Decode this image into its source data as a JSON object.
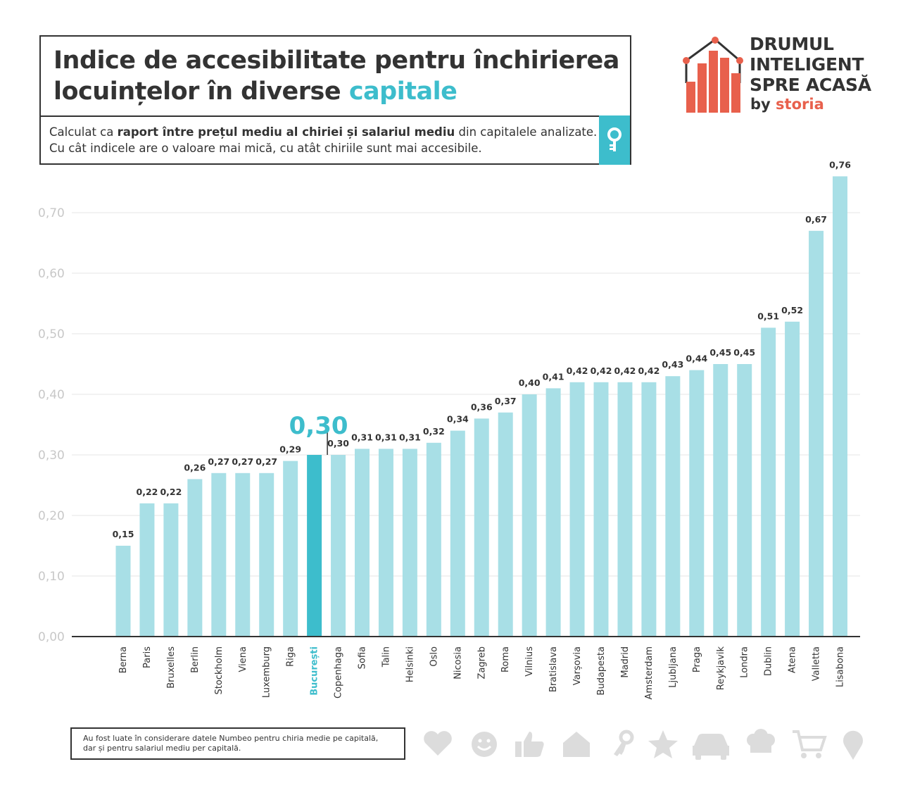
{
  "header": {
    "title_part1": "Indice de accesibilitate pentru închirierea locuințelor în diverse",
    "title_accent": "capitale",
    "subtitle_part1": "Calculat ca",
    "subtitle_bold": "raport între prețul mediu al chiriei și salariul mediu",
    "subtitle_part2": "din capitalele analizate.",
    "subtitle_line2": "Cu cât indicele are o valoare mai mică, cu atât chiriile sunt mai accesibile.",
    "key_icon": "key-icon"
  },
  "logo": {
    "line1": "DRUMUL",
    "line2": "INTELIGENT",
    "line3": "SPRE ACASĂ",
    "by": "by",
    "brand": "storia"
  },
  "chart_data": {
    "type": "bar",
    "categories": [
      "Berna",
      "Paris",
      "Bruxelles",
      "Berlin",
      "Stockholm",
      "Viena",
      "Luxemburg",
      "Riga",
      "București",
      "Copenhaga",
      "Sofia",
      "Talin",
      "Helsinki",
      "Oslo",
      "Nicosia",
      "Zagreb",
      "Roma",
      "Vilnius",
      "Bratislava",
      "Varșovia",
      "Budapesta",
      "Madrid",
      "Amsterdam",
      "Ljubljana",
      "Praga",
      "Reykjavik",
      "Londra",
      "Dublin",
      "Atena",
      "Valletta",
      "Lisabona"
    ],
    "values": [
      0.15,
      0.22,
      0.22,
      0.26,
      0.27,
      0.27,
      0.27,
      0.29,
      0.3,
      0.3,
      0.31,
      0.31,
      0.31,
      0.32,
      0.34,
      0.36,
      0.37,
      0.4,
      0.41,
      0.42,
      0.42,
      0.42,
      0.42,
      0.43,
      0.44,
      0.45,
      0.45,
      0.51,
      0.52,
      0.67,
      0.76
    ],
    "value_labels": [
      "0,15",
      "0,22",
      "0,22",
      "0,26",
      "0,27",
      "0,27",
      "0,27",
      "0,29",
      "0,30",
      "0,30",
      "0,31",
      "0,31",
      "0,31",
      "0,32",
      "0,34",
      "0,36",
      "0,37",
      "0,40",
      "0,41",
      "0,42",
      "0,42",
      "0,42",
      "0,42",
      "0,43",
      "0,44",
      "0,45",
      "0,45",
      "0,51",
      "0,52",
      "0,67",
      "0,76"
    ],
    "highlight_index": 8,
    "highlight_label": "0,30",
    "yticks": [
      0,
      0.1,
      0.2,
      0.3,
      0.4,
      0.5,
      0.6,
      0.7
    ],
    "ytick_labels": [
      "0,00",
      "0,10",
      "0,20",
      "0,30",
      "0,40",
      "0,50",
      "0,60",
      "0,70"
    ],
    "ylim": [
      0,
      0.8
    ],
    "grid": true,
    "colors": {
      "bar": "#a8dfe6",
      "highlight": "#3dbdcc",
      "axis_text": "#c8c8c8",
      "label_text": "#333333"
    }
  },
  "footnote": {
    "line1": "Au fost luate în considerare datele Numbeo pentru chiria medie pe capitală,",
    "line2": "dar și pentru salariul mediu per capitală."
  },
  "decor_icons": [
    "heart-icon",
    "smiley-icon",
    "thumbs-up-icon",
    "house-icon",
    "key-icon",
    "star-icon",
    "car-icon",
    "chef-hat-icon",
    "cart-icon",
    "location-pin-icon"
  ],
  "colors": {
    "accent": "#3dbdcc",
    "brand": "#e8604c",
    "dark": "#333333",
    "icon_gray": "#dcdcdc"
  }
}
